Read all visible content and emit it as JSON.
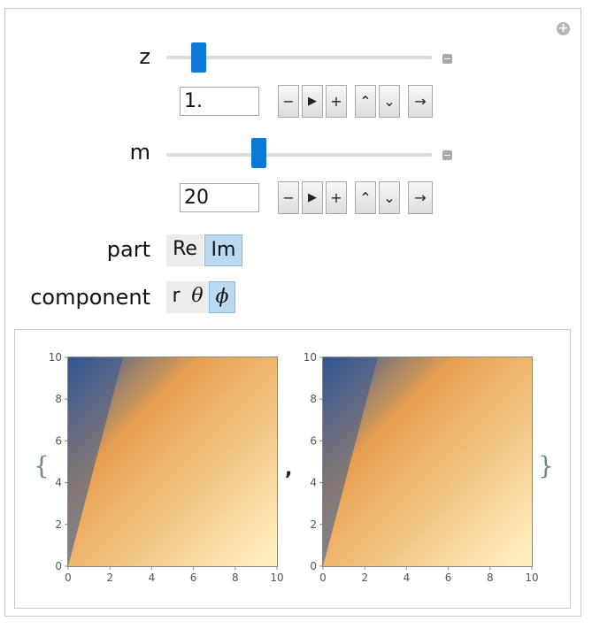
{
  "controls": {
    "z": {
      "label": "z",
      "input_value": "1.",
      "slider_fraction": 0.1
    },
    "m": {
      "label": "m",
      "input_value": "20",
      "slider_fraction": 0.34
    },
    "animator_buttons": {
      "decrement": "−",
      "play": "▶",
      "increment": "+",
      "faster": "⌃",
      "slower": "⌄",
      "direction": "→"
    },
    "part": {
      "label": "part",
      "options": [
        "Re",
        "Im"
      ],
      "selected": "Im"
    },
    "component": {
      "label": "component",
      "options": [
        "r",
        "θ",
        "ϕ"
      ],
      "selected": "ϕ"
    }
  },
  "output": {
    "open_brace": "{",
    "close_brace": "}",
    "separator": ",",
    "colors": {
      "blue": "#2f5596",
      "orange": "#e8a050",
      "cream": "#fff3c4"
    }
  },
  "chart_data": [
    {
      "type": "heatmap",
      "xlim": [
        0,
        10
      ],
      "ylim": [
        0,
        10
      ],
      "xticks": [
        "0",
        "2",
        "4",
        "6",
        "8",
        "10"
      ],
      "yticks": [
        "0",
        "2",
        "4",
        "6",
        "8",
        "10"
      ],
      "colormap": [
        "#2f5596",
        "#e8a050",
        "#fff3c4"
      ]
    },
    {
      "type": "heatmap",
      "xlim": [
        0,
        10
      ],
      "ylim": [
        0,
        10
      ],
      "xticks": [
        "0",
        "2",
        "4",
        "6",
        "8",
        "10"
      ],
      "yticks": [
        "0",
        "2",
        "4",
        "6",
        "8",
        "10"
      ],
      "colormap": [
        "#2f5596",
        "#e8a050",
        "#fff3c4"
      ]
    }
  ]
}
